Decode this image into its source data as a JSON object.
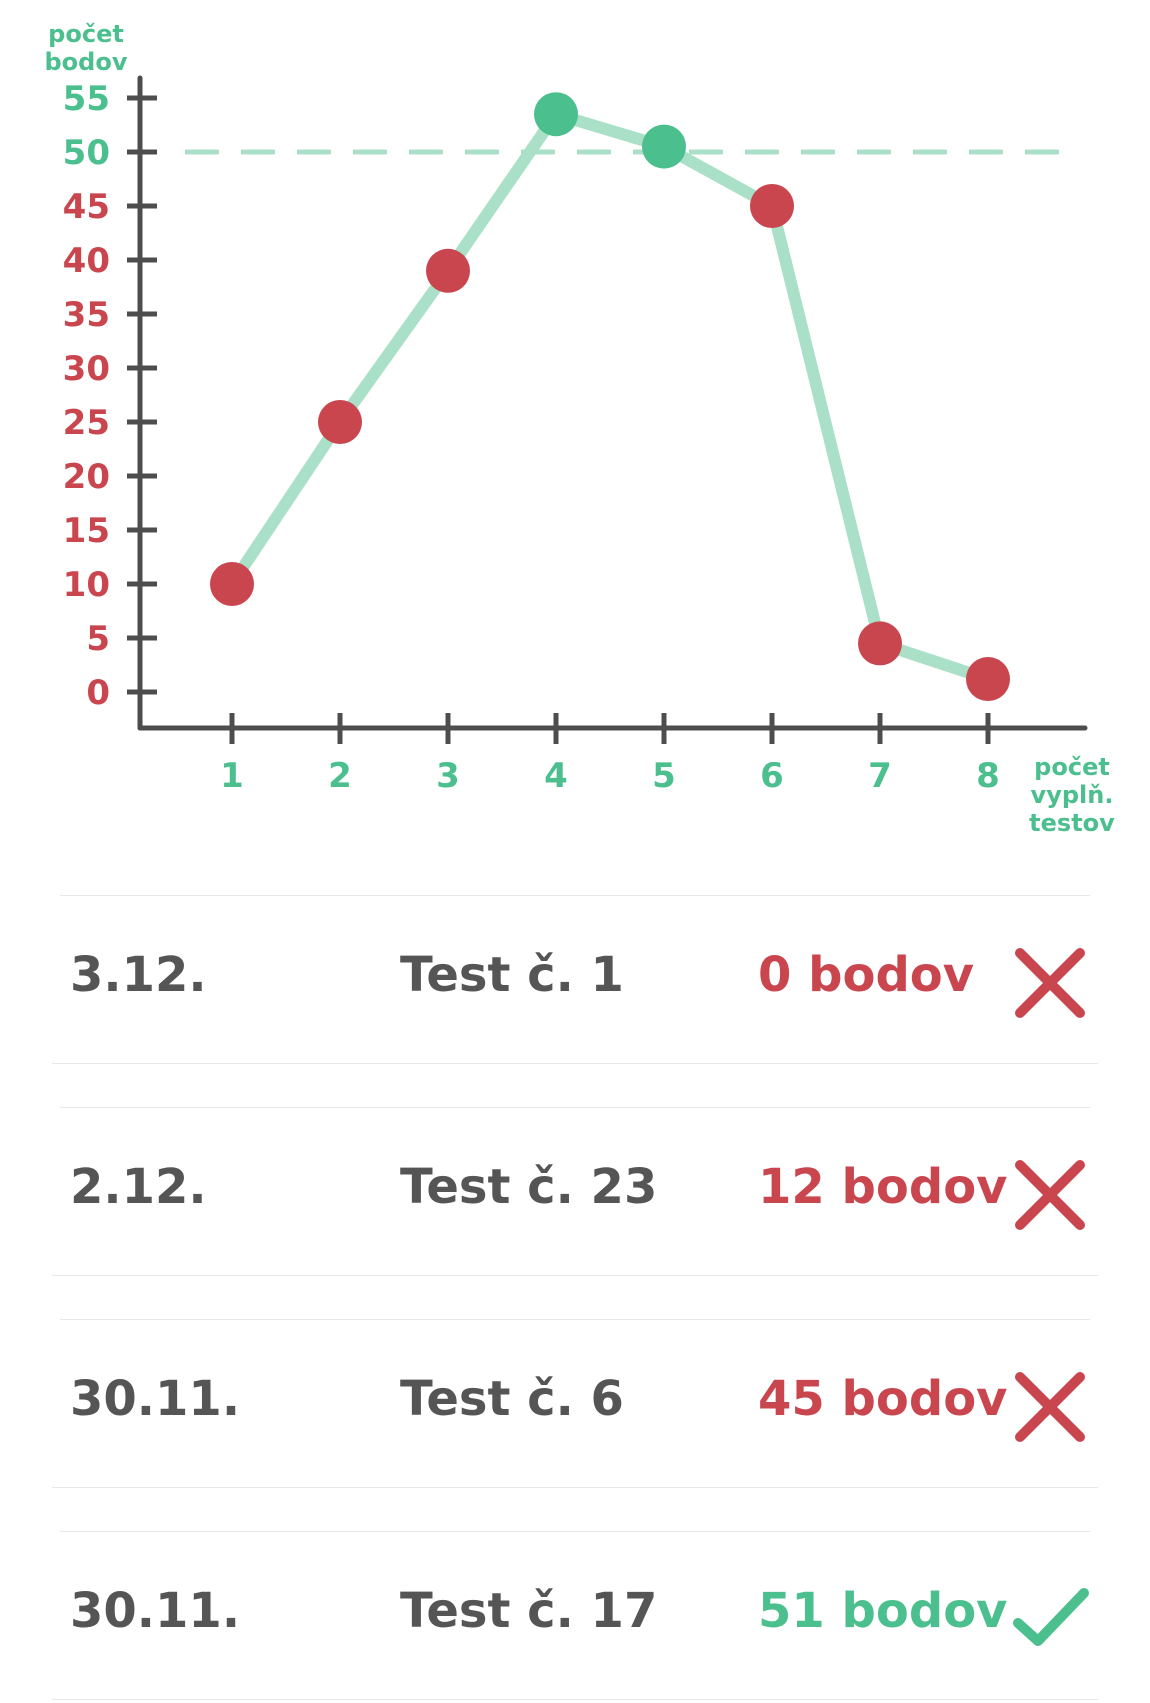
{
  "colors": {
    "fail": "#c9464f",
    "pass": "#4cbf8f",
    "line": "#a9e0c7",
    "axis": "#4d4d4d",
    "text": "#555555"
  },
  "chart_data": {
    "type": "line",
    "ylabel_lines": [
      "počet",
      "bodov"
    ],
    "xlabel_lines": [
      "počet",
      "vyplň.",
      "testov"
    ],
    "x": [
      1,
      2,
      3,
      4,
      5,
      6,
      7,
      8
    ],
    "values": [
      10,
      25,
      39,
      53.5,
      50.5,
      45,
      4.5,
      1.2
    ],
    "threshold": 50,
    "ylim": [
      0,
      55
    ],
    "xticks": [
      "1",
      "2",
      "3",
      "4",
      "5",
      "6",
      "7",
      "8"
    ],
    "yticks": [
      "0",
      "5",
      "10",
      "15",
      "20",
      "25",
      "30",
      "35",
      "40",
      "45",
      "50",
      "55"
    ],
    "ytick_values": [
      0,
      5,
      10,
      15,
      20,
      25,
      30,
      35,
      40,
      45,
      50,
      55
    ],
    "grid": false
  },
  "results": [
    {
      "date": "3.12.",
      "test": "Test č. 1",
      "score": "0 bodov",
      "status": "fail",
      "icon": "cross-icon"
    },
    {
      "date": "2.12.",
      "test": "Test č. 23",
      "score": "12 bodov",
      "status": "fail",
      "icon": "cross-icon"
    },
    {
      "date": "30.11.",
      "test": "Test č. 6",
      "score": "45 bodov",
      "status": "fail",
      "icon": "cross-icon"
    },
    {
      "date": "30.11.",
      "test": "Test č. 17",
      "score": "51 bodov",
      "status": "pass",
      "icon": "check-icon"
    }
  ]
}
